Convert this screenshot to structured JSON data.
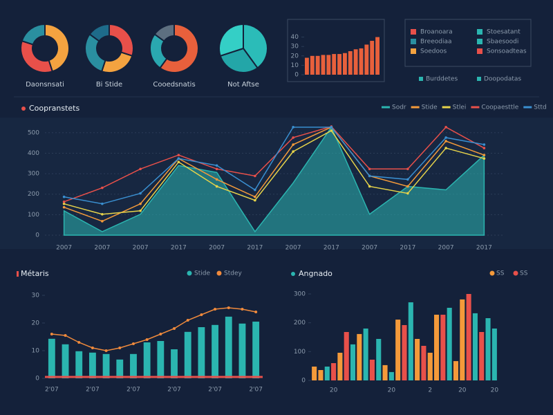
{
  "chart_data": [
    {
      "type": "donut",
      "title": "Daonsnsati",
      "values": [
        45,
        35,
        20
      ],
      "colors": [
        "#f4a340",
        "#e8504a",
        "#2a8fa0"
      ]
    },
    {
      "type": "donut",
      "title": "Bi Stide",
      "values": [
        30,
        25,
        30,
        15
      ],
      "colors": [
        "#e8504a",
        "#f4a340",
        "#2a8fa0",
        "#1e6b8a"
      ]
    },
    {
      "type": "donut",
      "title": "Cooedsnatis",
      "values": [
        60,
        25,
        15
      ],
      "colors": [
        "#e8603c",
        "#2aa8b0",
        "#5d6f80"
      ]
    },
    {
      "type": "pie",
      "title": "Not Aftse",
      "values": [
        40,
        30,
        30
      ],
      "colors": [
        "#2bbcb8",
        "#23a6a8",
        "#34cfc6"
      ]
    },
    {
      "type": "minibar",
      "values": [
        18,
        20,
        20,
        21,
        21,
        22,
        22,
        23,
        25,
        27,
        28,
        32,
        36,
        40
      ],
      "color": "#e8603c",
      "ylim": [
        0,
        50
      ],
      "yticks": [
        0,
        10,
        20,
        30,
        40
      ]
    },
    {
      "type": "line",
      "title": "Coopranstets",
      "categories": [
        "2007",
        "2007",
        "2007",
        "2017",
        "2007",
        "2017",
        "2007",
        "2017",
        "2007",
        "2017",
        "2007",
        "2017"
      ],
      "ylim": [
        0,
        540
      ],
      "yticks": [
        0,
        100,
        200,
        300,
        400,
        500
      ],
      "grid": true,
      "series": [
        {
          "name": "Sodr",
          "color": "#2bb5b0",
          "area": true,
          "values": [
            119,
            17,
            102,
            340,
            306,
            17,
            255,
            527,
            102,
            238,
            221,
            391
          ]
        },
        {
          "name": "Stide",
          "color": "#f49a3a",
          "values": [
            136,
            68,
            153,
            374,
            272,
            187,
            442,
            527,
            289,
            238,
            459,
            391
          ]
        },
        {
          "name": "Stlei",
          "color": "#e6d34a",
          "values": [
            153,
            102,
            119,
            357,
            238,
            170,
            408,
            510,
            238,
            204,
            425,
            374
          ]
        },
        {
          "name": "Coopaesttle",
          "color": "#e8504a",
          "values": [
            163,
            231,
            323,
            391,
            323,
            289,
            476,
            530,
            323,
            323,
            527,
            425
          ]
        },
        {
          "name": "Sttd",
          "color": "#3a8fd0",
          "values": [
            187,
            153,
            204,
            374,
            340,
            221,
            527,
            527,
            289,
            272,
            476,
            442
          ]
        }
      ]
    },
    {
      "type": "combo",
      "title": "Métaris",
      "categories": [
        "2'07",
        null,
        null,
        "2'07",
        null,
        null,
        "2'07",
        null,
        null,
        "2'07",
        null,
        null,
        "2'07",
        null,
        null,
        "2'07"
      ],
      "ylim": [
        0,
        30
      ],
      "yticks": [
        0,
        10,
        20,
        30
      ],
      "series": [
        {
          "name": "Stide",
          "color": "#2bb5b0",
          "kind": "bar",
          "values": [
            14.3,
            12.3,
            9.8,
            9.3,
            8.8,
            6.8,
            8.8,
            13,
            13.5,
            10.5,
            16.8,
            18.5,
            19.3,
            22.3,
            19.8,
            20.5
          ]
        },
        {
          "name": "Stdey",
          "color": "#f08a3c",
          "kind": "line",
          "values": [
            16,
            15.5,
            13,
            11,
            10,
            11,
            12.5,
            14,
            16,
            18,
            21,
            23,
            25,
            25.5,
            25,
            24
          ]
        }
      ]
    },
    {
      "type": "colorbar",
      "title": "Angnado",
      "categories": [
        null,
        null,
        null,
        "20",
        null,
        null,
        null,
        null,
        null,
        null,
        null,
        null,
        "20",
        null,
        null,
        null,
        null,
        null,
        "2",
        null,
        null,
        null,
        null,
        "20",
        null,
        null,
        null,
        null,
        "20"
      ],
      "ylim": [
        0,
        300
      ],
      "yticks": [
        0,
        100,
        200,
        300
      ],
      "values": [
        48,
        36,
        48,
        60,
        96,
        168,
        125,
        161,
        180,
        72,
        144,
        53,
        29,
        211,
        192,
        271,
        144,
        120,
        96,
        228,
        228,
        252,
        67,
        281,
        300,
        233,
        168,
        216,
        180
      ],
      "colors": [
        "#f49a3a",
        "#f49a3a",
        "#2bb5b0",
        "#e8504a",
        "#f49a3a",
        "#e8504a",
        "#2bb5b0",
        "#f49a3a",
        "#2bb5b0",
        "#e8504a",
        "#2bb5b0",
        "#f49a3a",
        "#2bb5b0",
        "#f49a3a",
        "#e8504a",
        "#2bb5b0",
        "#f49a3a",
        "#e8504a",
        "#f49a3a",
        "#f49a3a",
        "#e8504a",
        "#2bb5b0",
        "#f49a3a",
        "#f49a3a",
        "#e8504a",
        "#2bb5b0",
        "#e8504a",
        "#2bb5b0",
        "#2bb5b0"
      ],
      "legend": [
        {
          "name": "SS",
          "color": "#f49a3a"
        },
        {
          "name": "SS",
          "color": "#e8504a"
        }
      ]
    }
  ],
  "legend_panel": {
    "items": [
      {
        "name": "Broanoara",
        "color": "#e8504a"
      },
      {
        "name": "Stoesatant",
        "color": "#2bb5b0"
      },
      {
        "name": "Breeodiaa",
        "color": "#2a8fa0"
      },
      {
        "name": "Sbaesoodi",
        "color": "#2bb5b0"
      },
      {
        "name": "Soedoos",
        "color": "#f4a340"
      },
      {
        "name": "Sonsoadteas",
        "color": "#e8504a"
      }
    ],
    "labels": [
      "Burddetes",
      "Doopodatas"
    ]
  }
}
